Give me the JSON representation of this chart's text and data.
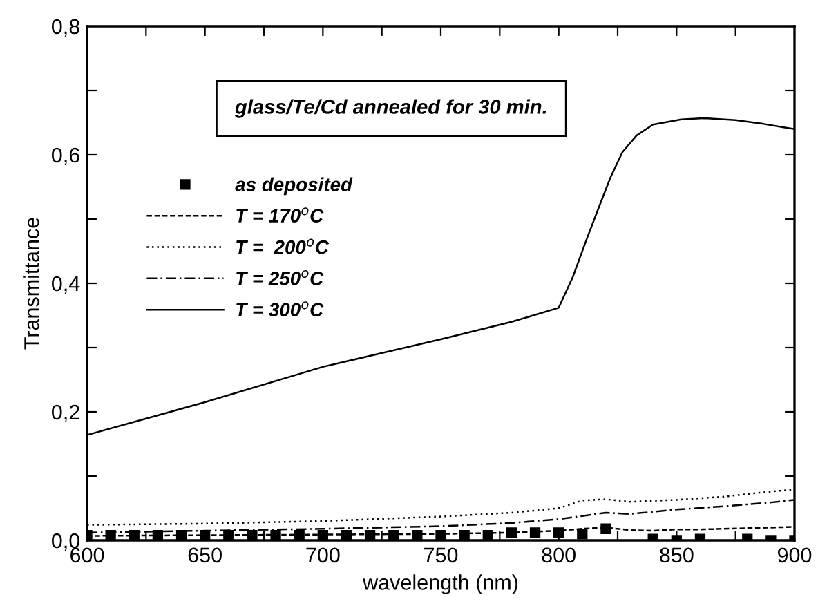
{
  "chart_data": {
    "type": "line",
    "title": "glass/Te/Cd annealed for 30 min.",
    "xlabel": "wavelength (nm)",
    "ylabel": "Transmittance",
    "xlim": [
      600,
      900
    ],
    "ylim": [
      0,
      0.8
    ],
    "xticks": [
      600,
      {
        "value": 625,
        "label": null
      },
      650,
      {
        "value": 675,
        "label": null
      },
      700,
      {
        "value": 725,
        "label": null
      },
      750,
      {
        "value": 775,
        "label": null
      },
      800,
      {
        "value": 825,
        "label": null
      },
      850,
      {
        "value": 875,
        "label": null
      },
      900
    ],
    "yticks": [
      {
        "value": 0,
        "label": "0,0"
      },
      {
        "value": 0.1,
        "label": null
      },
      {
        "value": 0.2,
        "label": "0,2"
      },
      {
        "value": 0.3,
        "label": null
      },
      {
        "value": 0.4,
        "label": "0,4"
      },
      {
        "value": 0.5,
        "label": null
      },
      {
        "value": 0.6,
        "label": "0,6"
      },
      {
        "value": 0.7,
        "label": null
      },
      {
        "value": 0.8,
        "label": "0,8"
      }
    ],
    "grid": false,
    "legend": "top left",
    "series": [
      {
        "name": "as deposited",
        "type": "scatter",
        "marker": "square",
        "color": "#000000",
        "x": [
          600,
          610,
          620,
          630,
          640,
          650,
          660,
          670,
          680,
          690,
          700,
          710,
          720,
          730,
          740,
          750,
          760,
          770,
          780,
          790,
          800,
          810,
          820,
          840,
          850,
          860,
          880,
          890,
          900
        ],
        "values": [
          0.008,
          0.008,
          0.008,
          0.008,
          0.008,
          0.008,
          0.008,
          0.008,
          0.008,
          0.008,
          0.008,
          0.008,
          0.008,
          0.008,
          0.008,
          0.008,
          0.008,
          0.008,
          0.012,
          0.012,
          0.012,
          0.01,
          0.018,
          0.002,
          0.0,
          0.002,
          0.002,
          0.0,
          0.0
        ]
      },
      {
        "name": "T = 170$^{o}$C",
        "type": "line",
        "line_style": "dashed",
        "color": "#000000",
        "x": [
          600,
          650,
          700,
          750,
          780,
          800,
          810,
          820,
          830,
          840,
          850,
          860,
          880,
          900
        ],
        "values": [
          0.007,
          0.008,
          0.009,
          0.01,
          0.012,
          0.015,
          0.018,
          0.02,
          0.016,
          0.015,
          0.017,
          0.017,
          0.019,
          0.021
        ]
      },
      {
        "name": "T =  200$^{o}$C",
        "type": "line",
        "line_style": "dotted",
        "color": "#000000",
        "x": [
          600,
          650,
          700,
          750,
          780,
          800,
          805,
          810,
          820,
          830,
          850,
          870,
          890,
          900
        ],
        "values": [
          0.024,
          0.026,
          0.03,
          0.037,
          0.043,
          0.05,
          0.056,
          0.062,
          0.064,
          0.06,
          0.063,
          0.068,
          0.076,
          0.079
        ]
      },
      {
        "name": "T = 250$^{o}$C",
        "type": "line",
        "line_style": "dashdot",
        "color": "#000000",
        "x": [
          600,
          650,
          700,
          750,
          780,
          800,
          810,
          820,
          830,
          850,
          870,
          890,
          900
        ],
        "values": [
          0.012,
          0.015,
          0.018,
          0.022,
          0.027,
          0.033,
          0.038,
          0.043,
          0.041,
          0.048,
          0.053,
          0.059,
          0.063
        ]
      },
      {
        "name": "T = 300$^{o}$C",
        "type": "line",
        "line_style": "solid",
        "color": "#000000",
        "x": [
          600,
          650,
          700,
          750,
          780,
          800,
          806,
          812,
          817,
          822,
          827,
          833,
          840,
          852,
          862,
          875,
          887,
          895,
          900
        ],
        "values": [
          0.164,
          0.215,
          0.27,
          0.313,
          0.34,
          0.362,
          0.41,
          0.47,
          0.518,
          0.565,
          0.604,
          0.63,
          0.647,
          0.655,
          0.657,
          0.654,
          0.648,
          0.643,
          0.64
        ]
      }
    ]
  }
}
